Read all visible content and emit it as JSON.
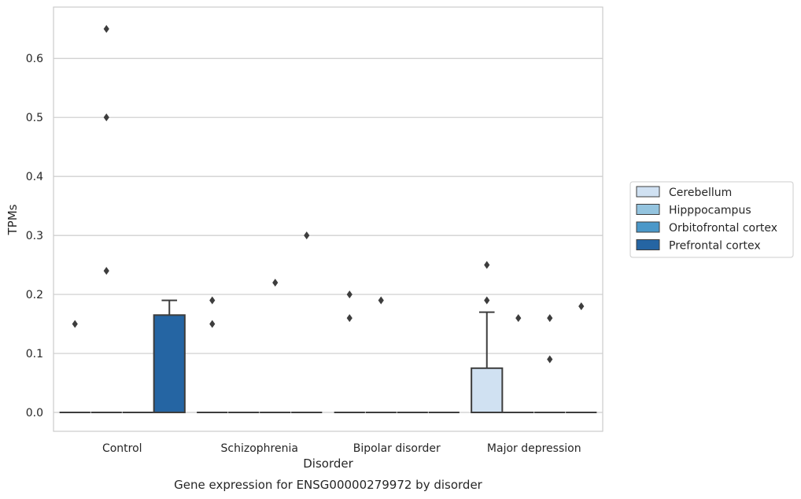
{
  "chart_data": {
    "type": "box",
    "xlabel": "Disorder",
    "ylabel": "TPMs",
    "caption": "Gene expression for ENSG00000279972 by disorder",
    "categories": [
      "Control",
      "Schizophrenia",
      "Bipolar disorder",
      "Major depression"
    ],
    "yticks": [
      "0.0",
      "0.1",
      "0.2",
      "0.3",
      "0.4",
      "0.5",
      "0.6"
    ],
    "ylim": [
      -0.032,
      0.687
    ],
    "grid": "horizontal",
    "legend_position": "right",
    "series": [
      {
        "name": "Cerebellum",
        "color": "#d0e1f2",
        "boxes": [
          {
            "category": "Control",
            "q1": 0,
            "median": 0,
            "q3": 0,
            "whisker_low": 0,
            "whisker_high": 0,
            "outliers": [
              0.15
            ]
          },
          {
            "category": "Schizophrenia",
            "q1": 0,
            "median": 0,
            "q3": 0,
            "whisker_low": 0,
            "whisker_high": 0,
            "outliers": [
              0.19,
              0.15
            ]
          },
          {
            "category": "Bipolar disorder",
            "q1": 0,
            "median": 0,
            "q3": 0,
            "whisker_low": 0,
            "whisker_high": 0,
            "outliers": [
              0.2,
              0.16
            ]
          },
          {
            "category": "Major depression",
            "q1": 0,
            "median": 0,
            "q3": 0.075,
            "whisker_low": 0,
            "whisker_high": 0.17,
            "outliers": [
              0.25,
              0.19
            ]
          }
        ]
      },
      {
        "name": "Hipppocampus",
        "color": "#94c4df",
        "boxes": [
          {
            "category": "Control",
            "q1": 0,
            "median": 0,
            "q3": 0,
            "whisker_low": 0,
            "whisker_high": 0,
            "outliers": [
              0.65,
              0.5,
              0.24
            ]
          },
          {
            "category": "Schizophrenia",
            "q1": 0,
            "median": 0,
            "q3": 0,
            "whisker_low": 0,
            "whisker_high": 0,
            "outliers": []
          },
          {
            "category": "Bipolar disorder",
            "q1": 0,
            "median": 0,
            "q3": 0,
            "whisker_low": 0,
            "whisker_high": 0,
            "outliers": [
              0.19
            ]
          },
          {
            "category": "Major depression",
            "q1": 0,
            "median": 0,
            "q3": 0,
            "whisker_low": 0,
            "whisker_high": 0,
            "outliers": [
              0.16
            ]
          }
        ]
      },
      {
        "name": "Orbitofrontal cortex",
        "color": "#4b98c9",
        "boxes": [
          {
            "category": "Control",
            "q1": 0,
            "median": 0,
            "q3": 0,
            "whisker_low": 0,
            "whisker_high": 0,
            "outliers": []
          },
          {
            "category": "Schizophrenia",
            "q1": 0,
            "median": 0,
            "q3": 0,
            "whisker_low": 0,
            "whisker_high": 0,
            "outliers": [
              0.22
            ]
          },
          {
            "category": "Bipolar disorder",
            "q1": 0,
            "median": 0,
            "q3": 0,
            "whisker_low": 0,
            "whisker_high": 0,
            "outliers": []
          },
          {
            "category": "Major depression",
            "q1": 0,
            "median": 0,
            "q3": 0,
            "whisker_low": 0,
            "whisker_high": 0,
            "outliers": [
              0.16,
              0.09
            ]
          }
        ]
      },
      {
        "name": "Prefrontal cortex",
        "color": "#2565a3",
        "boxes": [
          {
            "category": "Control",
            "q1": 0,
            "median": 0,
            "q3": 0.165,
            "whisker_low": 0,
            "whisker_high": 0.19,
            "outliers": []
          },
          {
            "category": "Schizophrenia",
            "q1": 0,
            "median": 0,
            "q3": 0,
            "whisker_low": 0,
            "whisker_high": 0,
            "outliers": [
              0.3
            ]
          },
          {
            "category": "Bipolar disorder",
            "q1": 0,
            "median": 0,
            "q3": 0,
            "whisker_low": 0,
            "whisker_high": 0,
            "outliers": []
          },
          {
            "category": "Major depression",
            "q1": 0,
            "median": 0,
            "q3": 0,
            "whisker_low": 0,
            "whisker_high": 0,
            "outliers": [
              0.18
            ]
          }
        ]
      }
    ]
  }
}
